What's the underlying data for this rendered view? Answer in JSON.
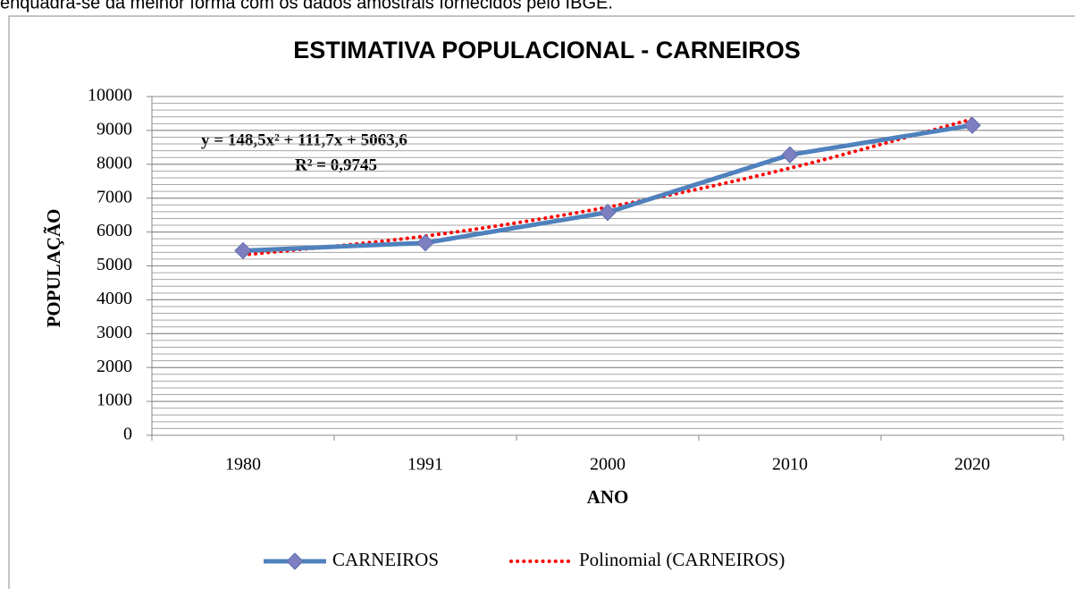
{
  "page_text": "enquadra-se da melhor forma com os dados amostrais fornecidos pelo IBGE.",
  "chart_data": {
    "type": "line",
    "title": "ESTIMATIVA POPULACIONAL - CARNEIROS",
    "x_label": "ANO",
    "y_label": "POPULAÇÃO",
    "annotations": [
      "y = 148,5x² + 111,7x + 5063,6",
      "R² = 0,9745"
    ],
    "categories": [
      "1980",
      "1991",
      "2000",
      "2010",
      "2020"
    ],
    "series": [
      {
        "name": "CARNEIROS",
        "color": "#4f81bd",
        "marker_color": "#7d7fc0",
        "values": [
          5450,
          5680,
          6580,
          8280,
          9150
        ]
      },
      {
        "name": "Polinomial (CARNEIROS)",
        "color": "#ff0000",
        "dotted": true,
        "values": [
          5323.8,
          5881,
          6735.2,
          7886.4,
          9334.6
        ]
      }
    ],
    "ylim": [
      0,
      10000
    ],
    "yticks": [
      0,
      1000,
      2000,
      3000,
      4000,
      5000,
      6000,
      7000,
      8000,
      9000,
      10000
    ],
    "grid": true,
    "minor_grid_step": 200,
    "legend": "bottom"
  }
}
